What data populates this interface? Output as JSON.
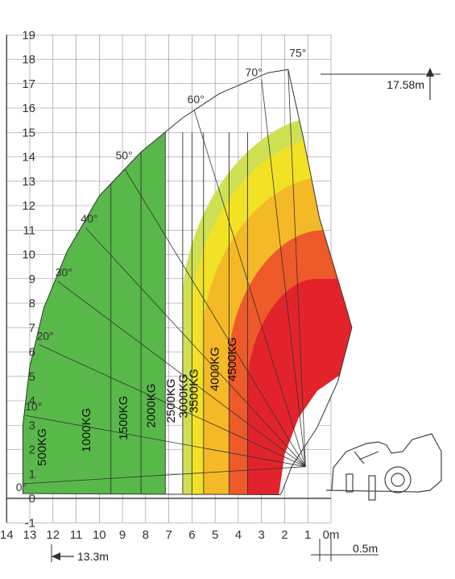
{
  "chart_data": {
    "type": "area",
    "title": "",
    "xlabel": "",
    "ylabel": "",
    "x_range": [
      14,
      0
    ],
    "y_range": [
      -1,
      19
    ],
    "grid": true,
    "x_ticks": [
      "14",
      "13",
      "12",
      "11",
      "10",
      "9",
      "8",
      "7",
      "6",
      "5",
      "4",
      "3",
      "2",
      "1",
      "0m"
    ],
    "y_ticks": [
      "-1",
      "0",
      "1",
      "2",
      "3",
      "4",
      "5",
      "6",
      "7",
      "8",
      "9",
      "10",
      "11",
      "12",
      "13",
      "14",
      "15",
      "16",
      "17",
      "18",
      "19"
    ],
    "angle_labels": [
      {
        "label": "0°",
        "x": 13.6,
        "y": 0.3
      },
      {
        "label": "10°",
        "x": 13.2,
        "y": 3.6
      },
      {
        "label": "20°",
        "x": 12.7,
        "y": 6.5
      },
      {
        "label": "30°",
        "x": 11.9,
        "y": 9.1
      },
      {
        "label": "40°",
        "x": 10.8,
        "y": 11.3
      },
      {
        "label": "50°",
        "x": 9.3,
        "y": 13.9
      },
      {
        "label": "60°",
        "x": 6.2,
        "y": 16.2
      },
      {
        "label": "70°",
        "x": 3.7,
        "y": 17.3
      },
      {
        "label": "75°",
        "x": 1.8,
        "y": 18.1
      }
    ],
    "series": [
      {
        "name": "500KG",
        "color": "#5bc3d6",
        "x_min": 11.4,
        "label_y": 2.1
      },
      {
        "name": "1000KG",
        "color": "#63c3b0",
        "x_min": 9.5,
        "label_y": 2.8
      },
      {
        "name": "1500KG",
        "color": "#72c08c",
        "x_min": 8.2,
        "label_y": 3.3
      },
      {
        "name": "2000KG",
        "color": "#59b84a",
        "x_min": 7.15,
        "label_y": 3.8
      },
      {
        "name": "2500KG",
        "color": "#cfe055",
        "x_min": 6.4,
        "label_y": 4.0
      },
      {
        "name": "3000KG",
        "color": "#f2e226",
        "x_min": 6.0,
        "label_y": 4.2
      },
      {
        "name": "3500KG",
        "color": "#f4b927",
        "x_min": 5.5,
        "label_y": 4.4
      },
      {
        "name": "4000KG",
        "color": "#ee5a29",
        "x_min": 4.4,
        "label_y": 5.3
      },
      {
        "name": "4500KG",
        "color": "#e3232b",
        "x_min": 3.6,
        "label_y": 5.7
      }
    ],
    "annotations": {
      "max_height": "17.58m",
      "max_reach": "13.3m",
      "offset": "0.5m"
    }
  }
}
